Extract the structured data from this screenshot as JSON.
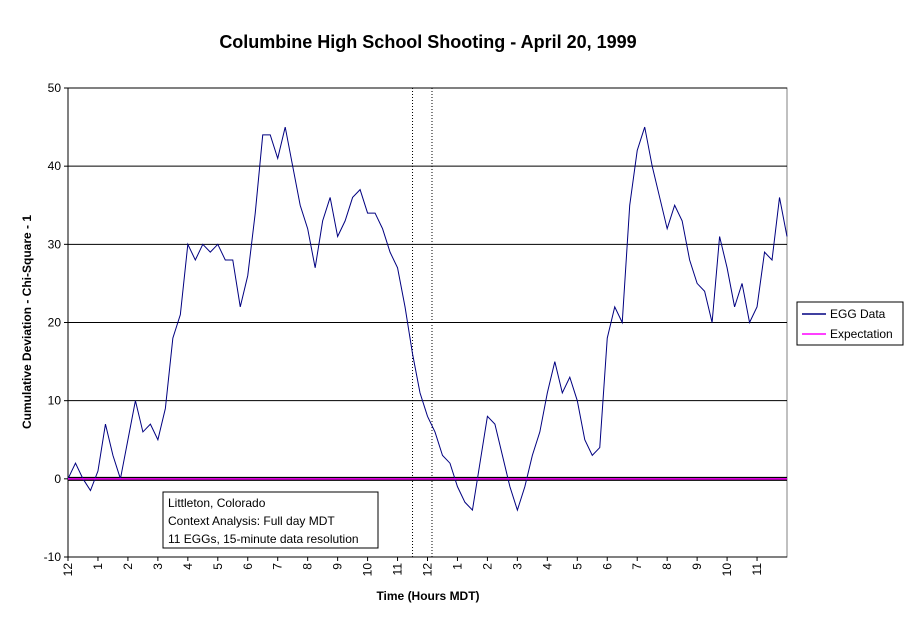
{
  "chart_data": {
    "type": "line",
    "title": "Columbine High School Shooting - April 20, 1999",
    "x_label": "Time (Hours MDT)",
    "y_label": "Cumulative Deviation - Chi-Square - 1",
    "xlim": [
      0,
      24
    ],
    "ylim": [
      -10,
      50
    ],
    "xticks": [
      {
        "value": 0,
        "label": "12"
      },
      1,
      2,
      3,
      4,
      5,
      6,
      7,
      8,
      9,
      10,
      11,
      12,
      {
        "value": 13,
        "label": "1"
      },
      {
        "value": 14,
        "label": "2"
      },
      {
        "value": 15,
        "label": "3"
      },
      {
        "value": 16,
        "label": "4"
      },
      {
        "value": 17,
        "label": "5"
      },
      {
        "value": 18,
        "label": "6"
      },
      {
        "value": 19,
        "label": "7"
      },
      {
        "value": 20,
        "label": "8"
      },
      {
        "value": 21,
        "label": "9"
      },
      {
        "value": 22,
        "label": "10"
      },
      {
        "value": 23,
        "label": "11"
      }
    ],
    "yticks": [
      -10,
      0,
      10,
      20,
      30,
      40,
      50
    ],
    "grid": true,
    "legend": "right",
    "x": [
      0,
      0.25,
      0.5,
      0.75,
      1,
      1.25,
      1.5,
      1.75,
      2,
      2.25,
      2.5,
      2.75,
      3,
      3.25,
      3.5,
      3.75,
      4,
      4.25,
      4.5,
      4.75,
      5,
      5.25,
      5.5,
      5.75,
      6,
      6.25,
      6.5,
      6.75,
      7,
      7.25,
      7.5,
      7.75,
      8,
      8.25,
      8.5,
      8.75,
      9,
      9.25,
      9.5,
      9.75,
      10,
      10.25,
      10.5,
      10.75,
      11,
      11.25,
      11.5,
      11.75,
      12,
      12.25,
      12.5,
      12.75,
      13,
      13.25,
      13.5,
      13.75,
      14,
      14.25,
      14.5,
      14.75,
      15,
      15.25,
      15.5,
      15.75,
      16,
      16.25,
      16.5,
      16.75,
      17,
      17.25,
      17.5,
      17.75,
      18,
      18.25,
      18.5,
      18.75,
      19,
      19.25,
      19.5,
      19.75,
      20,
      20.25,
      20.5,
      20.75,
      21,
      21.25,
      21.5,
      21.75,
      22,
      22.25,
      22.5,
      22.75,
      23,
      23.25,
      23.5,
      23.75,
      24
    ],
    "series": [
      {
        "name": "EGG Data",
        "color": "#000080",
        "values": [
          0,
          2,
          0,
          -1.5,
          1,
          7,
          3,
          0,
          5,
          10,
          6,
          7,
          5,
          9,
          18,
          21,
          30,
          28,
          30,
          29,
          30,
          28,
          28,
          22,
          26,
          34,
          44,
          44,
          41,
          45,
          40,
          35,
          32,
          27,
          33,
          36,
          31,
          33,
          36,
          37,
          34,
          34,
          32,
          29,
          27,
          22,
          16,
          11,
          8,
          6,
          3,
          2,
          -1,
          -3,
          -4,
          2,
          8,
          7,
          3,
          -1,
          -4,
          -1,
          3,
          6,
          11,
          15,
          11,
          13,
          10,
          5,
          3,
          4,
          18,
          22,
          20,
          35,
          42,
          45,
          40,
          36,
          32,
          35,
          33,
          28,
          25,
          24,
          20,
          31,
          27,
          22,
          25,
          20,
          22,
          29,
          28,
          36,
          31
        ]
      },
      {
        "name": "Expectation",
        "color": "#ff00ff",
        "x": [
          0,
          24
        ],
        "values": [
          0,
          0
        ]
      }
    ],
    "event_lines": [
      11.5,
      12.15
    ],
    "annotation": [
      "Littleton, Colorado",
      "Context Analysis: Full day MDT",
      "11 EGGs, 15-minute data resolution"
    ]
  }
}
